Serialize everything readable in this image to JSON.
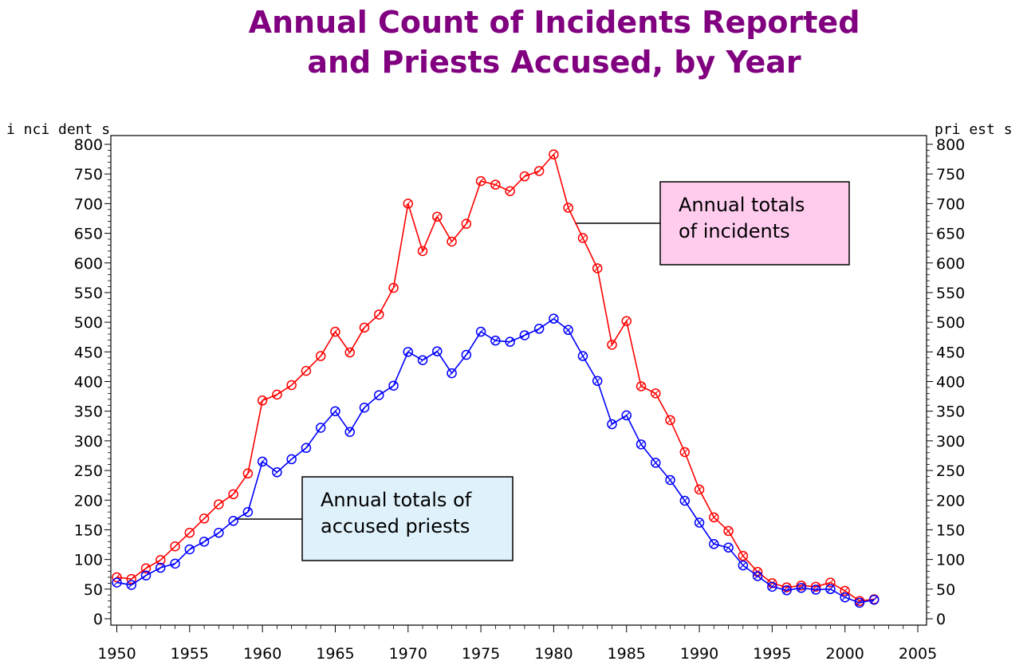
{
  "chart_data": {
    "type": "line",
    "title_line1": "Annual Count of Incidents Reported",
    "title_line2": "and Priests Accused, by Year",
    "ylabel_left": "i nci dent s",
    "ylabel_right": "pri est s",
    "xlim": [
      1950,
      2005
    ],
    "ylim": [
      0,
      800
    ],
    "xticks": [
      1950,
      1955,
      1960,
      1965,
      1970,
      1975,
      1980,
      1985,
      1990,
      1995,
      2000,
      2005
    ],
    "yticks": [
      0,
      50,
      100,
      150,
      200,
      250,
      300,
      350,
      400,
      450,
      500,
      550,
      600,
      650,
      700,
      750,
      800
    ],
    "x": [
      1950,
      1951,
      1952,
      1953,
      1954,
      1955,
      1956,
      1957,
      1958,
      1959,
      1960,
      1961,
      1962,
      1963,
      1964,
      1965,
      1966,
      1967,
      1968,
      1969,
      1970,
      1971,
      1972,
      1973,
      1974,
      1975,
      1976,
      1977,
      1978,
      1979,
      1980,
      1981,
      1982,
      1983,
      1984,
      1985,
      1986,
      1987,
      1988,
      1989,
      1990,
      1991,
      1992,
      1993,
      1994,
      1995,
      1996,
      1997,
      1998,
      1999,
      2000,
      2001,
      2002
    ],
    "series": [
      {
        "name": "Annual totals of incidents",
        "color": "#ff0000",
        "values": [
          70,
          67,
          85,
          99,
          122,
          145,
          169,
          193,
          210,
          245,
          368,
          378,
          394,
          418,
          443,
          484,
          449,
          491,
          513,
          558,
          700,
          620,
          678,
          636,
          666,
          738,
          732,
          721,
          746,
          755,
          783,
          693,
          642,
          591,
          462,
          502,
          392,
          380,
          335,
          281,
          218,
          171,
          148,
          106,
          79,
          60,
          53,
          56,
          54,
          61,
          47,
          30,
          33
        ]
      },
      {
        "name": "Annual totals of accused priests",
        "color": "#0000ff",
        "values": [
          61,
          57,
          73,
          86,
          93,
          117,
          130,
          145,
          165,
          180,
          265,
          247,
          269,
          288,
          322,
          350,
          315,
          356,
          377,
          393,
          450,
          436,
          451,
          414,
          445,
          484,
          469,
          467,
          478,
          489,
          506,
          487,
          443,
          401,
          328,
          343,
          294,
          263,
          234,
          199,
          162,
          126,
          120,
          90,
          72,
          54,
          48,
          52,
          49,
          50,
          36,
          27,
          32
        ]
      }
    ],
    "annotations": {
      "incidents_line1": "Annual totals",
      "incidents_line2": "of incidents",
      "incidents_fill": "#ffccee",
      "priests_line1": "Annual totals of",
      "priests_line2": "accused priests",
      "priests_fill": "#dff1fb"
    }
  }
}
